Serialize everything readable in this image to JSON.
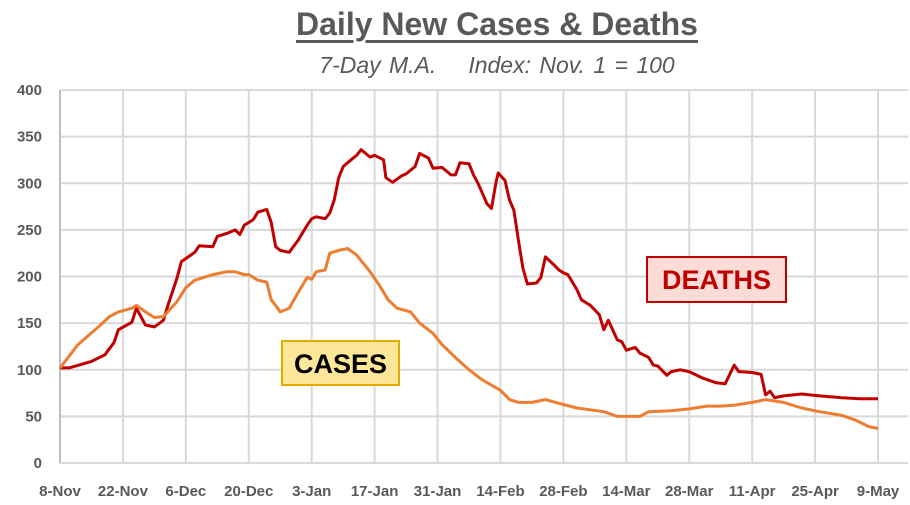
{
  "chart_data": {
    "type": "line",
    "title": "Daily New Cases & Deaths",
    "subtitle_parts": [
      "7-Day M.A.",
      "Index: Nov. 1 = 100"
    ],
    "xlabel": "",
    "ylabel": "",
    "ylim": [
      0,
      400
    ],
    "yticks": [
      "0",
      "50",
      "100",
      "150",
      "200",
      "250",
      "300",
      "350",
      "400"
    ],
    "ytick_values": [
      0,
      50,
      100,
      150,
      200,
      250,
      300,
      350,
      400
    ],
    "x_unit": "days since 8-Nov",
    "xlim": [
      0,
      182
    ],
    "xticks": [
      "8-Nov",
      "22-Nov",
      "6-Dec",
      "20-Dec",
      "3-Jan",
      "17-Jan",
      "31-Jan",
      "14-Feb",
      "28-Feb",
      "14-Mar",
      "28-Mar",
      "11-Apr",
      "25-Apr",
      "9-May"
    ],
    "grid": true,
    "annotations": {
      "cases": "CASES",
      "deaths": "DEATHS"
    },
    "colors": {
      "cases": "#ed7d31",
      "deaths": "#c00000",
      "grid": "#d9d9d9"
    },
    "series": [
      {
        "name": "Deaths",
        "points": [
          [
            0,
            102
          ],
          [
            2,
            102
          ],
          [
            7,
            109
          ],
          [
            10,
            116
          ],
          [
            12,
            129
          ],
          [
            13,
            143
          ],
          [
            16,
            151
          ],
          [
            17,
            166
          ],
          [
            19,
            148
          ],
          [
            21,
            146
          ],
          [
            23,
            153
          ],
          [
            24,
            169
          ],
          [
            26,
            198
          ],
          [
            27,
            216
          ],
          [
            30,
            226
          ],
          [
            31,
            233
          ],
          [
            34,
            232
          ],
          [
            35,
            243
          ],
          [
            37,
            246
          ],
          [
            39,
            250
          ],
          [
            40,
            245
          ],
          [
            41,
            255
          ],
          [
            43,
            261
          ],
          [
            44,
            269
          ],
          [
            46,
            272
          ],
          [
            47,
            258
          ],
          [
            48,
            232
          ],
          [
            49,
            228
          ],
          [
            51,
            226
          ],
          [
            53,
            239
          ],
          [
            55,
            255
          ],
          [
            56,
            262
          ],
          [
            57,
            264
          ],
          [
            59,
            262
          ],
          [
            60,
            268
          ],
          [
            61,
            282
          ],
          [
            62,
            306
          ],
          [
            63,
            318
          ],
          [
            64,
            322
          ],
          [
            66,
            330
          ],
          [
            67,
            336
          ],
          [
            69,
            328
          ],
          [
            70,
            330
          ],
          [
            72,
            325
          ],
          [
            72.5,
            306
          ],
          [
            74,
            301
          ],
          [
            76,
            308
          ],
          [
            77,
            310
          ],
          [
            79,
            318
          ],
          [
            80,
            332
          ],
          [
            82,
            327
          ],
          [
            83,
            316
          ],
          [
            85,
            317
          ],
          [
            87,
            309
          ],
          [
            88,
            309
          ],
          [
            89,
            322
          ],
          [
            91,
            321
          ],
          [
            92,
            309
          ],
          [
            93,
            300
          ],
          [
            95,
            278
          ],
          [
            96,
            273
          ],
          [
            97,
            301
          ],
          [
            97.5,
            311
          ],
          [
            99,
            303
          ],
          [
            100,
            282
          ],
          [
            101,
            271
          ],
          [
            102,
            239
          ],
          [
            103,
            209
          ],
          [
            104,
            192
          ],
          [
            106,
            193
          ],
          [
            107,
            199
          ],
          [
            108,
            221
          ],
          [
            110,
            212
          ],
          [
            111,
            207
          ],
          [
            112,
            204
          ],
          [
            113,
            202
          ],
          [
            115,
            186
          ],
          [
            116,
            175
          ],
          [
            118,
            169
          ],
          [
            120,
            159
          ],
          [
            121,
            143
          ],
          [
            122,
            153
          ],
          [
            124,
            132
          ],
          [
            125,
            130
          ],
          [
            126,
            121
          ],
          [
            128,
            124
          ],
          [
            129,
            118
          ],
          [
            131,
            113
          ],
          [
            132,
            105
          ],
          [
            133,
            104
          ],
          [
            135,
            94
          ],
          [
            136,
            98
          ],
          [
            138,
            100
          ],
          [
            140,
            98
          ],
          [
            143,
            91
          ],
          [
            146,
            86
          ],
          [
            148,
            85
          ],
          [
            150,
            105
          ],
          [
            151,
            98
          ],
          [
            154,
            97
          ],
          [
            156,
            95
          ],
          [
            157,
            73
          ],
          [
            158,
            77
          ],
          [
            159,
            70
          ],
          [
            161,
            72
          ],
          [
            165,
            74
          ],
          [
            169,
            72
          ],
          [
            174,
            70
          ],
          [
            178,
            69
          ],
          [
            182,
            69
          ]
        ]
      },
      {
        "name": "Cases",
        "points": [
          [
            0,
            102
          ],
          [
            4,
            127
          ],
          [
            9,
            148
          ],
          [
            11,
            157
          ],
          [
            13,
            162
          ],
          [
            16,
            166
          ],
          [
            17,
            169
          ],
          [
            19,
            162
          ],
          [
            21,
            156
          ],
          [
            23,
            157
          ],
          [
            26,
            173
          ],
          [
            28,
            188
          ],
          [
            30,
            196
          ],
          [
            32,
            199
          ],
          [
            34,
            202
          ],
          [
            37,
            205
          ],
          [
            39,
            205
          ],
          [
            41,
            202
          ],
          [
            42,
            202
          ],
          [
            44,
            196
          ],
          [
            46,
            194
          ],
          [
            47,
            175
          ],
          [
            48,
            169
          ],
          [
            49,
            162
          ],
          [
            51,
            166
          ],
          [
            53,
            183
          ],
          [
            55,
            199
          ],
          [
            56,
            197
          ],
          [
            57,
            205
          ],
          [
            59,
            207
          ],
          [
            60,
            225
          ],
          [
            62,
            228
          ],
          [
            64,
            230
          ],
          [
            66,
            223
          ],
          [
            69,
            205
          ],
          [
            71,
            191
          ],
          [
            73,
            175
          ],
          [
            75,
            166
          ],
          [
            78,
            162
          ],
          [
            80,
            150
          ],
          [
            83,
            139
          ],
          [
            85,
            127
          ],
          [
            88,
            113
          ],
          [
            91,
            100
          ],
          [
            94,
            89
          ],
          [
            98,
            78
          ],
          [
            100,
            68
          ],
          [
            102,
            65
          ],
          [
            105,
            65
          ],
          [
            108,
            68
          ],
          [
            111,
            64
          ],
          [
            115,
            59
          ],
          [
            118,
            57
          ],
          [
            121,
            55
          ],
          [
            124,
            50
          ],
          [
            129,
            50
          ],
          [
            131,
            55
          ],
          [
            136,
            56
          ],
          [
            140,
            58
          ],
          [
            144,
            61
          ],
          [
            147,
            61
          ],
          [
            150,
            62
          ],
          [
            154,
            65
          ],
          [
            157,
            68
          ],
          [
            161,
            65
          ],
          [
            165,
            59
          ],
          [
            169,
            55
          ],
          [
            174,
            51
          ],
          [
            177,
            46
          ],
          [
            180,
            39
          ],
          [
            182,
            37
          ]
        ]
      }
    ]
  }
}
